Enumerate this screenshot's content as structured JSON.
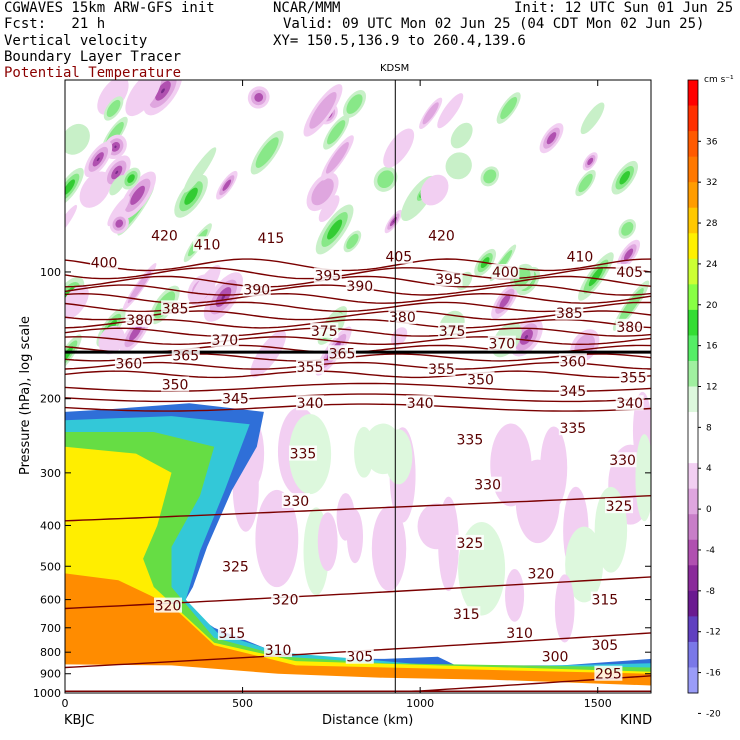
{
  "header": {
    "line1_left": "CGWAVES 15km ARW-GFS init",
    "line1_center": "NCAR/MMM",
    "line1_right": "Init: 12 UTC Sun 01 Jun 25",
    "line2_left": "Fcst:   21 h",
    "line2_right": "Valid: 09 UTC Mon 02 Jun 25 (04 CDT Mon 02 Jun 25)",
    "line3_left": "Vertical velocity",
    "line3_right": "XY= 150.5,136.9 to 260.4,139.6",
    "line4_left": "Boundary Layer Tracer",
    "line5_left": "Potential Temperature"
  },
  "chart_data": {
    "type": "heatmap",
    "xlabel": "Distance (km)",
    "ylabel": "Pressure (hPa), log scale",
    "xlim": [
      0,
      1650
    ],
    "ylim": [
      1000,
      35
    ],
    "y_scale": "log",
    "x_ticks": [
      0,
      500,
      1000,
      1500
    ],
    "y_ticks": [
      100,
      200,
      300,
      400,
      500,
      600,
      700,
      800,
      900,
      1000
    ],
    "x_end_labels": {
      "left": "KBJC",
      "right": "KIND"
    },
    "station_marker": {
      "label": "KDSM",
      "x": 930
    },
    "colorbar": {
      "unit": "cm s⁻¹",
      "ticks": [
        36,
        32,
        28,
        24,
        20,
        16,
        12,
        8,
        4,
        0,
        -4,
        -8,
        -12,
        -16,
        -20
      ],
      "colors": [
        "#ff0000",
        "#ff3000",
        "#ff5a00",
        "#ff7800",
        "#ff9c00",
        "#ffc800",
        "#fff000",
        "#ccff33",
        "#88ff44",
        "#33dd33",
        "#55ee66",
        "#a0f0a0",
        "#ddf8dd",
        "#ffffff",
        "#ffffff",
        "#f2cff2",
        "#dfa6df",
        "#c87ec8",
        "#b050b0",
        "#8a2a9a",
        "#6a1a90",
        "#6040c0",
        "#7a78e8",
        "#9a9cf8"
      ]
    },
    "isentropes": {
      "levels": [
        295,
        300,
        305,
        310,
        315,
        320,
        325,
        330,
        335,
        340,
        345,
        350,
        355,
        360,
        365,
        370,
        375,
        380,
        385,
        390,
        395,
        400,
        405,
        410,
        415,
        420
      ],
      "labels": [
        {
          "text": "420",
          "x": 280,
          "p": 82
        },
        {
          "text": "410",
          "x": 400,
          "p": 86
        },
        {
          "text": "415",
          "x": 580,
          "p": 83
        },
        {
          "text": "405",
          "x": 940,
          "p": 92
        },
        {
          "text": "420",
          "x": 1060,
          "p": 82
        },
        {
          "text": "410",
          "x": 1450,
          "p": 92
        },
        {
          "text": "400",
          "x": 110,
          "p": 95
        },
        {
          "text": "395",
          "x": 740,
          "p": 102
        },
        {
          "text": "395",
          "x": 1080,
          "p": 104
        },
        {
          "text": "400",
          "x": 1240,
          "p": 100
        },
        {
          "text": "405",
          "x": 1590,
          "p": 100
        },
        {
          "text": "390",
          "x": 540,
          "p": 110
        },
        {
          "text": "390",
          "x": 830,
          "p": 108
        },
        {
          "text": "385",
          "x": 310,
          "p": 122
        },
        {
          "text": "385",
          "x": 1420,
          "p": 125
        },
        {
          "text": "380",
          "x": 210,
          "p": 130
        },
        {
          "text": "380",
          "x": 950,
          "p": 128
        },
        {
          "text": "380",
          "x": 1590,
          "p": 135
        },
        {
          "text": "375",
          "x": 730,
          "p": 138
        },
        {
          "text": "375",
          "x": 1090,
          "p": 138
        },
        {
          "text": "370",
          "x": 450,
          "p": 145
        },
        {
          "text": "370",
          "x": 1230,
          "p": 148
        },
        {
          "text": "365",
          "x": 340,
          "p": 158
        },
        {
          "text": "365",
          "x": 780,
          "p": 156
        },
        {
          "text": "360",
          "x": 180,
          "p": 165
        },
        {
          "text": "360",
          "x": 1430,
          "p": 163
        },
        {
          "text": "355",
          "x": 690,
          "p": 168
        },
        {
          "text": "355",
          "x": 1060,
          "p": 170
        },
        {
          "text": "355",
          "x": 1600,
          "p": 178
        },
        {
          "text": "350",
          "x": 310,
          "p": 185
        },
        {
          "text": "350",
          "x": 1170,
          "p": 180
        },
        {
          "text": "345",
          "x": 480,
          "p": 200
        },
        {
          "text": "345",
          "x": 1430,
          "p": 192
        },
        {
          "text": "340",
          "x": 690,
          "p": 205
        },
        {
          "text": "340",
          "x": 1000,
          "p": 205
        },
        {
          "text": "340",
          "x": 1590,
          "p": 205
        },
        {
          "text": "335",
          "x": 670,
          "p": 270
        },
        {
          "text": "335",
          "x": 1140,
          "p": 250
        },
        {
          "text": "335",
          "x": 1430,
          "p": 235
        },
        {
          "text": "330",
          "x": 650,
          "p": 350
        },
        {
          "text": "330",
          "x": 1190,
          "p": 320
        },
        {
          "text": "330",
          "x": 1570,
          "p": 280
        },
        {
          "text": "325",
          "x": 480,
          "p": 500
        },
        {
          "text": "325",
          "x": 1140,
          "p": 440
        },
        {
          "text": "325",
          "x": 1560,
          "p": 360
        },
        {
          "text": "320",
          "x": 290,
          "p": 620
        },
        {
          "text": "320",
          "x": 620,
          "p": 600
        },
        {
          "text": "320",
          "x": 1340,
          "p": 520
        },
        {
          "text": "315",
          "x": 470,
          "p": 720
        },
        {
          "text": "315",
          "x": 1130,
          "p": 650
        },
        {
          "text": "315",
          "x": 1520,
          "p": 600
        },
        {
          "text": "310",
          "x": 600,
          "p": 790
        },
        {
          "text": "310",
          "x": 1280,
          "p": 720
        },
        {
          "text": "305",
          "x": 830,
          "p": 820
        },
        {
          "text": "305",
          "x": 1520,
          "p": 770
        },
        {
          "text": "300",
          "x": 1380,
          "p": 820
        },
        {
          "text": "295",
          "x": 1530,
          "p": 900
        }
      ]
    },
    "tropopause_line": {
      "p": 155
    }
  }
}
